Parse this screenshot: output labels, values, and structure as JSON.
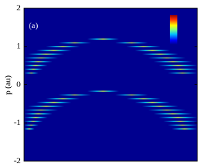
{
  "chart_data": {
    "type": "image",
    "annotation": "(a)",
    "ylabel": "p (au)",
    "ylim": [
      -2,
      2
    ],
    "yticks": [
      -2,
      -1,
      0,
      1,
      2
    ],
    "background": "#00008f",
    "colorbar": true
  }
}
